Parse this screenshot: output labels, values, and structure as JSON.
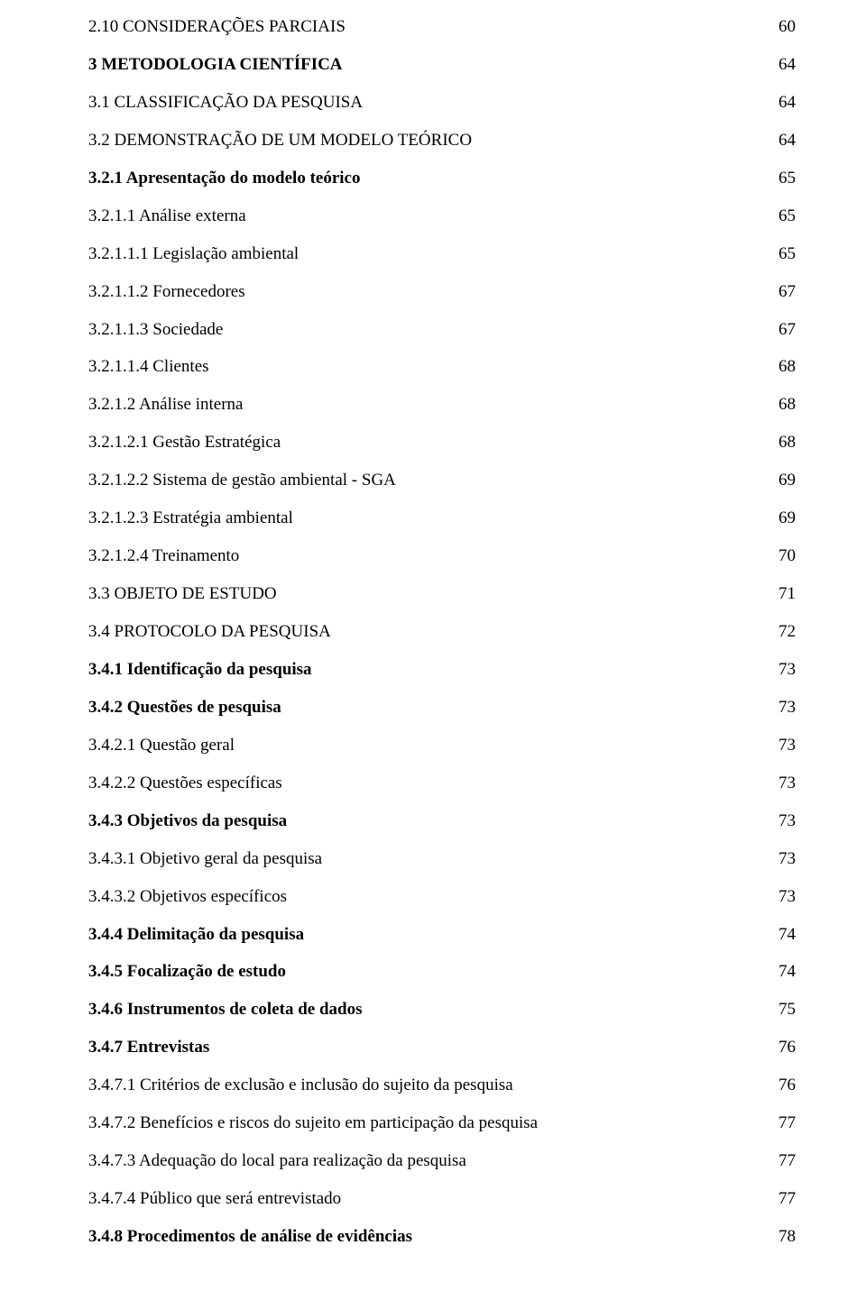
{
  "document": {
    "font_family": "Times New Roman",
    "font_size_pt": 12,
    "text_color": "#000000",
    "background_color": "#ffffff",
    "leader_char": "."
  },
  "toc": [
    {
      "label": "2.10 CONSIDERAÇÕES PARCIAIS",
      "page": "60",
      "bold": false
    },
    {
      "label": "3 METODOLOGIA CIENTÍFICA",
      "page": "64",
      "bold": true
    },
    {
      "label": "3.1 CLASSIFICAÇÃO DA PESQUISA",
      "page": "64",
      "bold": false
    },
    {
      "label": "3.2 DEMONSTRAÇÃO DE UM MODELO TEÓRICO",
      "page": "64",
      "bold": false
    },
    {
      "label": "3.2.1 Apresentação do modelo teórico",
      "page": "65",
      "bold": true
    },
    {
      "label": "3.2.1.1 Análise externa",
      "page": "65",
      "bold": false
    },
    {
      "label": "3.2.1.1.1 Legislação ambiental",
      "page": "65",
      "bold": false
    },
    {
      "label": "3.2.1.1.2 Fornecedores",
      "page": "67",
      "bold": false
    },
    {
      "label": "3.2.1.1.3 Sociedade",
      "page": "67",
      "bold": false
    },
    {
      "label": "3.2.1.1.4 Clientes",
      "page": "68",
      "bold": false
    },
    {
      "label": "3.2.1.2 Análise interna",
      "page": "68",
      "bold": false
    },
    {
      "label": "3.2.1.2.1 Gestão Estratégica",
      "page": "68",
      "bold": false
    },
    {
      "label": "3.2.1.2.2 Sistema de gestão ambiental - SGA",
      "page": "69",
      "bold": false
    },
    {
      "label": "3.2.1.2.3 Estratégia ambiental",
      "page": "69",
      "bold": false
    },
    {
      "label": "3.2.1.2.4 Treinamento",
      "page": "70",
      "bold": false
    },
    {
      "label": "3.3 OBJETO DE ESTUDO",
      "page": "71",
      "bold": false
    },
    {
      "label": "3.4 PROTOCOLO DA PESQUISA",
      "page": "72",
      "bold": false
    },
    {
      "label": "3.4.1 Identificação da pesquisa",
      "page": "73",
      "bold": true
    },
    {
      "label": "3.4.2 Questões de pesquisa",
      "page": "73",
      "bold": true
    },
    {
      "label": "3.4.2.1 Questão geral",
      "page": "73",
      "bold": false
    },
    {
      "label": "3.4.2.2 Questões específicas",
      "page": "73",
      "bold": false
    },
    {
      "label": "3.4.3 Objetivos da pesquisa",
      "page": "73",
      "bold": true
    },
    {
      "label": "3.4.3.1 Objetivo geral da pesquisa",
      "page": "73",
      "bold": false
    },
    {
      "label": "3.4.3.2 Objetivos específicos",
      "page": "73",
      "bold": false
    },
    {
      "label": "3.4.4 Delimitação da pesquisa",
      "page": "74",
      "bold": true
    },
    {
      "label": "3.4.5 Focalização de estudo",
      "page": "74",
      "bold": true
    },
    {
      "label": "3.4.6 Instrumentos de coleta de dados",
      "page": "75",
      "bold": true
    },
    {
      "label": "3.4.7 Entrevistas",
      "page": "76",
      "bold": true
    },
    {
      "label": "3.4.7.1 Critérios de exclusão e inclusão do sujeito da pesquisa",
      "page": "76",
      "bold": false
    },
    {
      "label": "3.4.7.2 Benefícios e riscos do sujeito em participação da pesquisa",
      "page": "77",
      "bold": false
    },
    {
      "label": "3.4.7.3 Adequação do local para realização da pesquisa",
      "page": "77",
      "bold": false
    },
    {
      "label": "3.4.7.4 Público que será entrevistado",
      "page": "77",
      "bold": false
    },
    {
      "label": "3.4.8 Procedimentos de análise de evidências",
      "page": "78",
      "bold": true
    }
  ]
}
